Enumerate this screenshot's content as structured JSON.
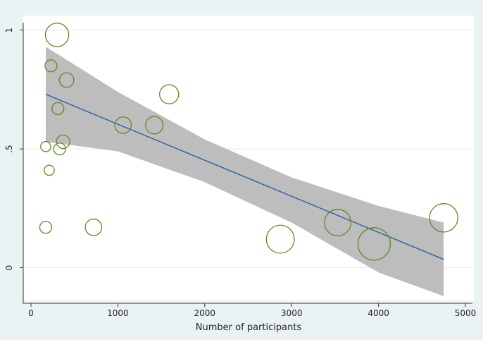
{
  "chart_data": {
    "type": "scatter",
    "title": "",
    "xlabel": "Number of participants",
    "ylabel": "",
    "xlim": [
      0,
      5000
    ],
    "ylim": [
      -0.15,
      1.02
    ],
    "x_ticks": [
      0,
      1000,
      2000,
      3000,
      4000,
      5000
    ],
    "x_tick_labels": [
      "0",
      "1000",
      "2000",
      "3000",
      "4000",
      "5000"
    ],
    "y_ticks": [
      0,
      0.5,
      1
    ],
    "y_tick_labels": [
      "0",
      ".5",
      "1"
    ],
    "grid": "horizontal",
    "legend": "none",
    "colors": {
      "marker": "#5f8a1f",
      "fit_line": "#2a5fa8",
      "ci_band": "#bdbdbd",
      "plot_bg": "#ffffff",
      "outer_bg": "#eaf2f3"
    },
    "points": [
      {
        "x": 170,
        "y": 0.51,
        "size": 0.1
      },
      {
        "x": 170,
        "y": 0.17,
        "size": 0.2
      },
      {
        "x": 210,
        "y": 0.41,
        "size": 0.1
      },
      {
        "x": 230,
        "y": 0.85,
        "size": 0.2
      },
      {
        "x": 300,
        "y": 0.98,
        "size": 1.6
      },
      {
        "x": 310,
        "y": 0.67,
        "size": 0.2
      },
      {
        "x": 330,
        "y": 0.5,
        "size": 0.2
      },
      {
        "x": 370,
        "y": 0.53,
        "size": 0.3
      },
      {
        "x": 410,
        "y": 0.79,
        "size": 0.4
      },
      {
        "x": 720,
        "y": 0.17,
        "size": 0.6
      },
      {
        "x": 1060,
        "y": 0.6,
        "size": 0.6
      },
      {
        "x": 1420,
        "y": 0.6,
        "size": 0.7
      },
      {
        "x": 1590,
        "y": 0.73,
        "size": 0.9
      },
      {
        "x": 2870,
        "y": 0.12,
        "size": 2.5
      },
      {
        "x": 3530,
        "y": 0.19,
        "size": 2.2
      },
      {
        "x": 3950,
        "y": 0.1,
        "size": 3.6
      },
      {
        "x": 4750,
        "y": 0.21,
        "size": 2.6
      }
    ],
    "fit_line": {
      "x": [
        170,
        4750
      ],
      "y": [
        0.73,
        0.035
      ]
    },
    "ci_band": {
      "x": [
        170,
        1000,
        2000,
        3000,
        4000,
        4750
      ],
      "upper": [
        0.93,
        0.74,
        0.54,
        0.38,
        0.26,
        0.19
      ],
      "lower": [
        0.53,
        0.49,
        0.36,
        0.19,
        -0.02,
        -0.12
      ]
    }
  }
}
